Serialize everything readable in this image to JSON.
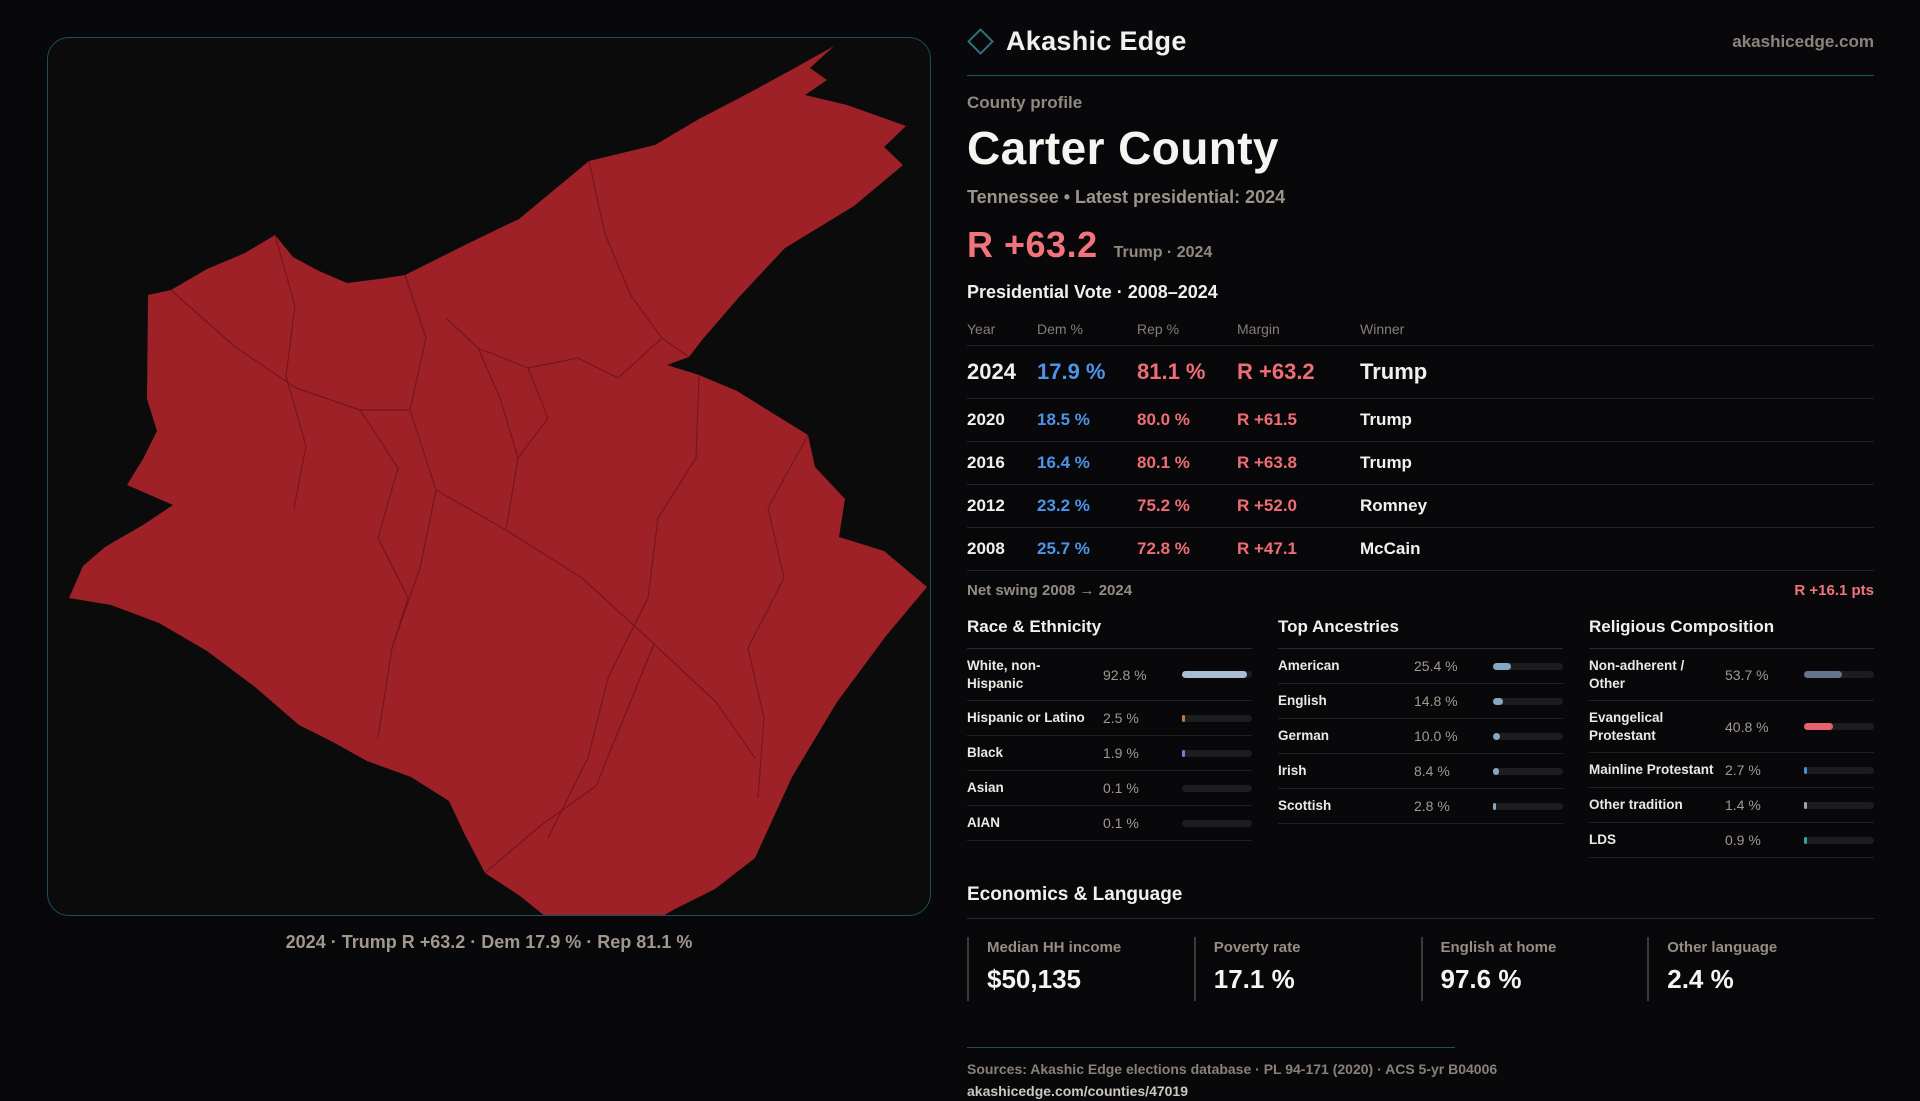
{
  "header": {
    "brand": "Akashic Edge",
    "domain": "akashicedge.com",
    "logo_icon": "diamond-outline-icon",
    "accent_teal": "#1d5560"
  },
  "map": {
    "caption": "2024 · Trump R +63.2 · Dem 17.9 % · Rep 81.1 %",
    "fill_color": "#9e2127",
    "boundary_color": "#6d151a",
    "panel_border_color": "#1b4f59"
  },
  "profile": {
    "eyebrow": "County profile",
    "title": "Carter County",
    "subtitle": "Tennessee • Latest presidential: 2024",
    "margin_value": "R +63.2",
    "margin_context": "Trump · 2024"
  },
  "elections": {
    "title": "Presidential Vote · 2008–2024",
    "columns": [
      "Year",
      "Dem %",
      "Rep %",
      "Margin",
      "Winner"
    ],
    "rows": [
      {
        "year": "2024",
        "dem": "17.9 %",
        "rep": "81.1 %",
        "margin": "R +63.2",
        "winner": "Trump",
        "featured": true
      },
      {
        "year": "2020",
        "dem": "18.5 %",
        "rep": "80.0 %",
        "margin": "R +61.5",
        "winner": "Trump",
        "featured": false
      },
      {
        "year": "2016",
        "dem": "16.4 %",
        "rep": "80.1 %",
        "margin": "R +63.8",
        "winner": "Trump",
        "featured": false
      },
      {
        "year": "2012",
        "dem": "23.2 %",
        "rep": "75.2 %",
        "margin": "R +52.0",
        "winner": "Romney",
        "featured": false
      },
      {
        "year": "2008",
        "dem": "25.7 %",
        "rep": "72.8 %",
        "margin": "R +47.1",
        "winner": "McCain",
        "featured": false
      }
    ],
    "swing_label": "Net swing 2008 → 2024",
    "swing_value": "R +16.1 pts",
    "dem_color": "#4d94e8",
    "rep_color": "#ef6d75",
    "accent_red": "#f2737c"
  },
  "demographics": {
    "race": {
      "title": "Race & Ethnicity",
      "items": [
        {
          "label": "White, non-Hispanic",
          "value": "92.8 %",
          "pct": 92.8,
          "bar_color": "#a9bdd3"
        },
        {
          "label": "Hispanic or Latino",
          "value": "2.5 %",
          "pct": 2.5,
          "bar_color": "#c07a35"
        },
        {
          "label": "Black",
          "value": "1.9 %",
          "pct": 1.9,
          "bar_color": "#7b79e0"
        },
        {
          "label": "Asian",
          "value": "0.1 %",
          "pct": 0.1,
          "bar_color": "#8899aa"
        },
        {
          "label": "AIAN",
          "value": "0.1 %",
          "pct": 0.1,
          "bar_color": "#8899aa"
        }
      ]
    },
    "ancestry": {
      "title": "Top Ancestries",
      "items": [
        {
          "label": "American",
          "value": "25.4 %",
          "pct": 25.4,
          "bar_color": "#89a6c0"
        },
        {
          "label": "English",
          "value": "14.8 %",
          "pct": 14.8,
          "bar_color": "#89a6c0"
        },
        {
          "label": "German",
          "value": "10.0 %",
          "pct": 10.0,
          "bar_color": "#89a6c0"
        },
        {
          "label": "Irish",
          "value": "8.4 %",
          "pct": 8.4,
          "bar_color": "#89a6c0"
        },
        {
          "label": "Scottish",
          "value": "2.8 %",
          "pct": 2.8,
          "bar_color": "#89a6c0"
        }
      ]
    },
    "religion": {
      "title": "Religious Composition",
      "items": [
        {
          "label": "Non-adherent / Other",
          "value": "53.7 %",
          "pct": 53.7,
          "bar_color": "#66758a"
        },
        {
          "label": "Evangelical Protestant",
          "value": "40.8 %",
          "pct": 40.8,
          "bar_color": "#e4626d"
        },
        {
          "label": "Mainline Protestant",
          "value": "2.7 %",
          "pct": 2.7,
          "bar_color": "#4a8fd9"
        },
        {
          "label": "Other tradition",
          "value": "1.4 %",
          "pct": 1.4,
          "bar_color": "#9aa3ad"
        },
        {
          "label": "LDS",
          "value": "0.9 %",
          "pct": 0.9,
          "bar_color": "#2ba89d"
        }
      ]
    }
  },
  "economics": {
    "title": "Economics & Language",
    "stats": [
      {
        "label": "Median HH income",
        "value": "$50,135"
      },
      {
        "label": "Poverty rate",
        "value": "17.1 %"
      },
      {
        "label": "English at home",
        "value": "97.6 %"
      },
      {
        "label": "Other language",
        "value": "2.4 %"
      }
    ]
  },
  "footer": {
    "sources": "Sources: Akashic Edge elections database · PL 94-171 (2020) · ACS 5-yr B04006",
    "permalink": "akashicedge.com/counties/47019"
  }
}
